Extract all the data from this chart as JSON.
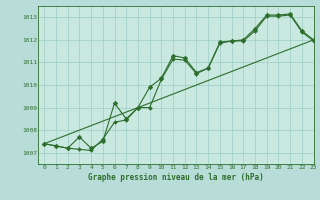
{
  "title": "Graphe pression niveau de la mer (hPa)",
  "xlim": [
    -0.5,
    23
  ],
  "ylim": [
    1006.5,
    1013.5
  ],
  "yticks": [
    1007,
    1008,
    1009,
    1010,
    1011,
    1012,
    1013
  ],
  "xticks": [
    0,
    1,
    2,
    3,
    4,
    5,
    6,
    7,
    8,
    9,
    10,
    11,
    12,
    13,
    14,
    15,
    16,
    17,
    18,
    19,
    20,
    21,
    22,
    23
  ],
  "bg_color": "#b8ddd8",
  "plot_bg_color": "#c8e8e0",
  "line_color": "#2d6e2d",
  "grid_color": "#9ecec4",
  "series1_x": [
    0,
    1,
    2,
    3,
    4,
    5,
    6,
    7,
    8,
    9,
    10,
    11,
    12,
    13,
    14,
    15,
    16,
    17,
    18,
    19,
    20,
    21,
    22,
    23
  ],
  "series1_y": [
    1007.4,
    1007.3,
    1007.2,
    1007.7,
    1007.2,
    1007.5,
    1009.2,
    1008.5,
    1009.0,
    1009.9,
    1010.3,
    1011.3,
    1011.2,
    1010.55,
    1010.75,
    1011.9,
    1011.95,
    1012.0,
    1012.5,
    1013.1,
    1013.1,
    1013.15,
    1012.4,
    1012.0
  ],
  "series2_x": [
    0,
    1,
    2,
    3,
    4,
    5,
    6,
    7,
    8,
    9,
    10,
    11,
    12,
    13,
    14,
    15,
    16,
    17,
    18,
    19,
    20,
    21,
    22,
    23
  ],
  "series2_y": [
    1007.4,
    1007.3,
    1007.2,
    1007.15,
    1007.1,
    1007.6,
    1008.35,
    1008.45,
    1009.0,
    1009.0,
    1010.25,
    1011.15,
    1011.1,
    1010.5,
    1010.75,
    1011.85,
    1011.95,
    1011.95,
    1012.4,
    1013.05,
    1013.05,
    1013.1,
    1012.35,
    1011.95
  ],
  "trend_x": [
    0,
    23
  ],
  "trend_y": [
    1007.4,
    1012.0
  ],
  "font_color": "#2d6e2d",
  "marker_size": 2.5,
  "linewidth": 0.8,
  "title_fontsize": 5.5
}
